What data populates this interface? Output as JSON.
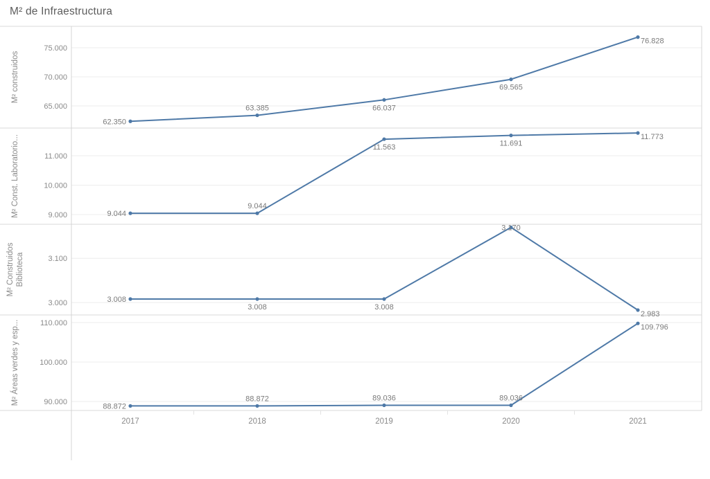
{
  "title": "M² de Infraestructura",
  "colors": {
    "line": "#4e79a7",
    "marker": "#4e79a7",
    "data_label": "#7a7a7a",
    "tick_label": "#8a8a8a",
    "axis_label": "#8a8a8a",
    "year_label": "#8a8a8a",
    "grid": "#ececec",
    "separator": "#dadada",
    "axis_border": "#d4d4d4",
    "title": "#5c5c5c"
  },
  "chart_data": {
    "type": "line",
    "title": "M² de Infraestructura",
    "x_label": "",
    "categories": [
      "2017",
      "2018",
      "2019",
      "2020",
      "2021"
    ],
    "grid": "horizontal",
    "legend": "none",
    "panels": [
      {
        "ylabel": "M² construidos",
        "ylabel_lines": [
          "M² construidos"
        ],
        "values": [
          62350,
          63385,
          66037,
          69565,
          76828
        ],
        "labels": [
          "62.350",
          "63.385",
          "66.037",
          "69.565",
          "76.828"
        ],
        "label_pos": [
          "left",
          "above",
          "below",
          "below",
          "right"
        ],
        "yticks": [
          65000,
          70000,
          75000
        ],
        "ytick_labels": [
          "65.000",
          "70.000",
          "75.000"
        ],
        "ylim": [
          61192,
          78685
        ]
      },
      {
        "ylabel": "M² Const. Laboratorio...",
        "ylabel_lines": [
          "M² Const. Laboratorio..."
        ],
        "values": [
          9044,
          9044,
          11563,
          11691,
          11773
        ],
        "labels": [
          "9.044",
          "9.044",
          "11.563",
          "11.691",
          "11.773"
        ],
        "label_pos": [
          "left",
          "above",
          "below",
          "below",
          "right"
        ],
        "yticks": [
          9000,
          10000,
          11000
        ],
        "ytick_labels": [
          "9.000",
          "10.000",
          "11.000"
        ],
        "ylim": [
          8671,
          11941
        ]
      },
      {
        "ylabel": "M² Construidos Biblioteca",
        "ylabel_lines": [
          "M² Construidos",
          "Biblioteca"
        ],
        "values": [
          3008,
          3008,
          3008,
          3170,
          2983
        ],
        "labels": [
          "3.008",
          "3.008",
          "3.008",
          "3.170",
          "2.983"
        ],
        "label_pos": [
          "left",
          "below",
          "below",
          "center",
          "right"
        ],
        "yticks": [
          3000,
          3100
        ],
        "ytick_labels": [
          "3.000",
          "3.100"
        ],
        "ylim": [
          2972,
          3177
        ]
      },
      {
        "ylabel": "M² Áreas verdes y esp...",
        "ylabel_lines": [
          "M² Áreas verdes y esp..."
        ],
        "values": [
          88872,
          88872,
          89036,
          89036,
          109796
        ],
        "labels": [
          "88.872",
          "88.872",
          "89.036",
          "89.036",
          "109.796"
        ],
        "label_pos": [
          "left",
          "above",
          "above",
          "above",
          "right"
        ],
        "yticks": [
          90000,
          100000,
          110000
        ],
        "ytick_labels": [
          "90.000",
          "100.000",
          "110.000"
        ],
        "ylim": [
          87720,
          111930
        ]
      }
    ]
  }
}
